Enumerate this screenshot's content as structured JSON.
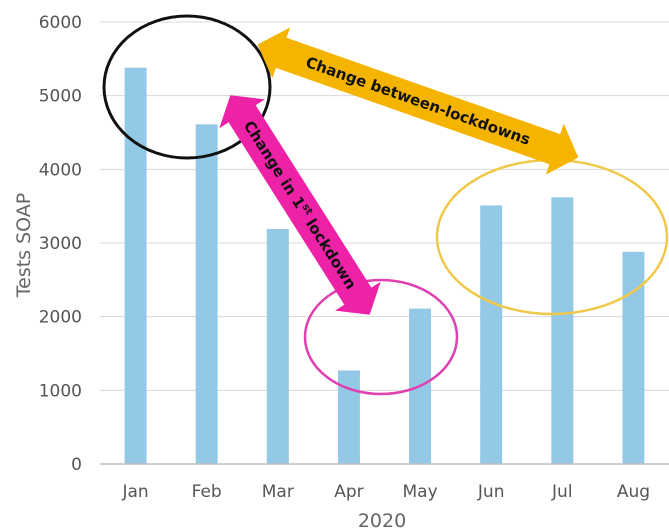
{
  "chart_data": {
    "type": "bar",
    "categories": [
      "Jan",
      "Feb",
      "Mar",
      "Apr",
      "May",
      "Jun",
      "Jul",
      "Aug"
    ],
    "values": [
      5380,
      4610,
      3190,
      1270,
      2110,
      3510,
      3620,
      2880
    ],
    "xlabel": "2020",
    "ylabel": "Tests SOAP",
    "ylim": [
      0,
      6000
    ],
    "yticks": [
      0,
      1000,
      2000,
      3000,
      4000,
      5000,
      6000
    ],
    "grid": true,
    "bar_color": "#93c9e6",
    "annotations": {
      "between_lockdowns": {
        "label": "Change between-lockdowns",
        "color": "#f5b400"
      },
      "first_lockdown": {
        "label_main": "Change in 1",
        "label_sup": "st",
        "label_end": " lockdown",
        "color": "#ee22a6"
      },
      "circle_colors": {
        "jan_feb": "#111111",
        "apr_may": "#e040b0",
        "jun_jul": "#f0c94a"
      }
    }
  }
}
